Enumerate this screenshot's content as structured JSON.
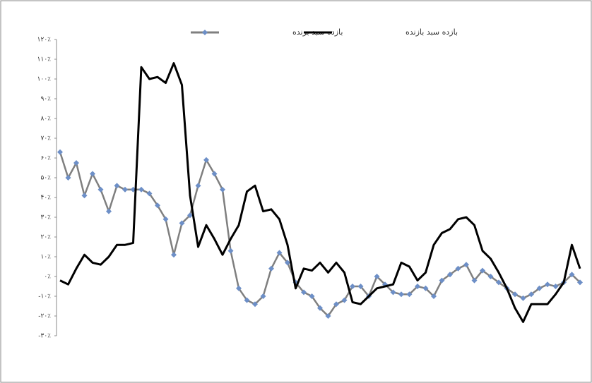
{
  "chart_data": {
    "type": "line",
    "categories": [
      null,
      null,
      null,
      null,
      null,
      null,
      null,
      null,
      null,
      null,
      null,
      null,
      null,
      null,
      null,
      null,
      null,
      null,
      null,
      null,
      null,
      null,
      null,
      null,
      null,
      null,
      null,
      null,
      null,
      null,
      null,
      null,
      null,
      null,
      null,
      null,
      null,
      null,
      null,
      null,
      null,
      null,
      null,
      null,
      null,
      null,
      null,
      null,
      null,
      null,
      null,
      null,
      null,
      null,
      null,
      null,
      null,
      null,
      null,
      null,
      null,
      null,
      null,
      null,
      null
    ],
    "series": [
      {
        "name": "بازده سبد برنده",
        "color": "#7f7f7f",
        "marker_color": "#6d8fc7",
        "values": [
          63,
          50,
          57.5,
          41,
          52,
          44,
          33,
          46,
          44,
          44,
          44,
          42,
          36,
          29,
          11,
          27,
          31,
          46,
          59,
          52,
          44,
          13,
          -6,
          -12,
          -14,
          -10,
          4,
          12,
          7,
          -3,
          -8,
          -10,
          -16,
          -20,
          -14,
          -12,
          -5,
          -5,
          -10,
          0,
          -4,
          -8,
          -9,
          -9,
          -5,
          -6,
          -10,
          -2,
          1,
          4,
          6,
          -2,
          3,
          0,
          -3,
          -6,
          -9,
          -11,
          -9,
          -6,
          -4,
          -5,
          -3,
          1,
          -3
        ]
      },
      {
        "name": "بازده سبد بازنده",
        "color": "#000000",
        "values": [
          -2,
          -4,
          4,
          11,
          7,
          6,
          10,
          16,
          16,
          17,
          106,
          100,
          101,
          98,
          108,
          97,
          41,
          15,
          26,
          19,
          11,
          19,
          26,
          43,
          46,
          33,
          34,
          29,
          16,
          -6,
          4,
          3,
          7,
          2,
          7,
          2,
          -13,
          -14,
          -10,
          -6,
          -5,
          -4,
          7,
          5,
          -2,
          2,
          16,
          22,
          24,
          29,
          30,
          26,
          13,
          9,
          2,
          -6,
          -16,
          -23,
          -14,
          -14,
          -14,
          -9,
          -3,
          16,
          4
        ]
      }
    ],
    "ylim": [
      -30,
      120
    ],
    "yticks": [
      {
        "value": 120,
        "label": "۱۲۰٪"
      },
      {
        "value": 110,
        "label": "۱۱۰٪"
      },
      {
        "value": 100,
        "label": "۱۰۰٪"
      },
      {
        "value": 90,
        "label": "۹۰٪"
      },
      {
        "value": 80,
        "label": "۸۰٪"
      },
      {
        "value": 70,
        "label": "۷۰٪"
      },
      {
        "value": 60,
        "label": "۶۰٪"
      },
      {
        "value": 50,
        "label": "۵۰٪"
      },
      {
        "value": 40,
        "label": "۴۰٪"
      },
      {
        "value": 30,
        "label": "۳۰٪"
      },
      {
        "value": 20,
        "label": "۲۰٪"
      },
      {
        "value": 10,
        "label": "۱۰٪"
      },
      {
        "value": 0,
        "label": "۰٪"
      },
      {
        "value": -10,
        "label": "-۱۰٪"
      },
      {
        "value": -20,
        "label": "-۲۰٪"
      },
      {
        "value": -30,
        "label": "-۳۰٪"
      }
    ],
    "grid": false,
    "legend": "top"
  }
}
